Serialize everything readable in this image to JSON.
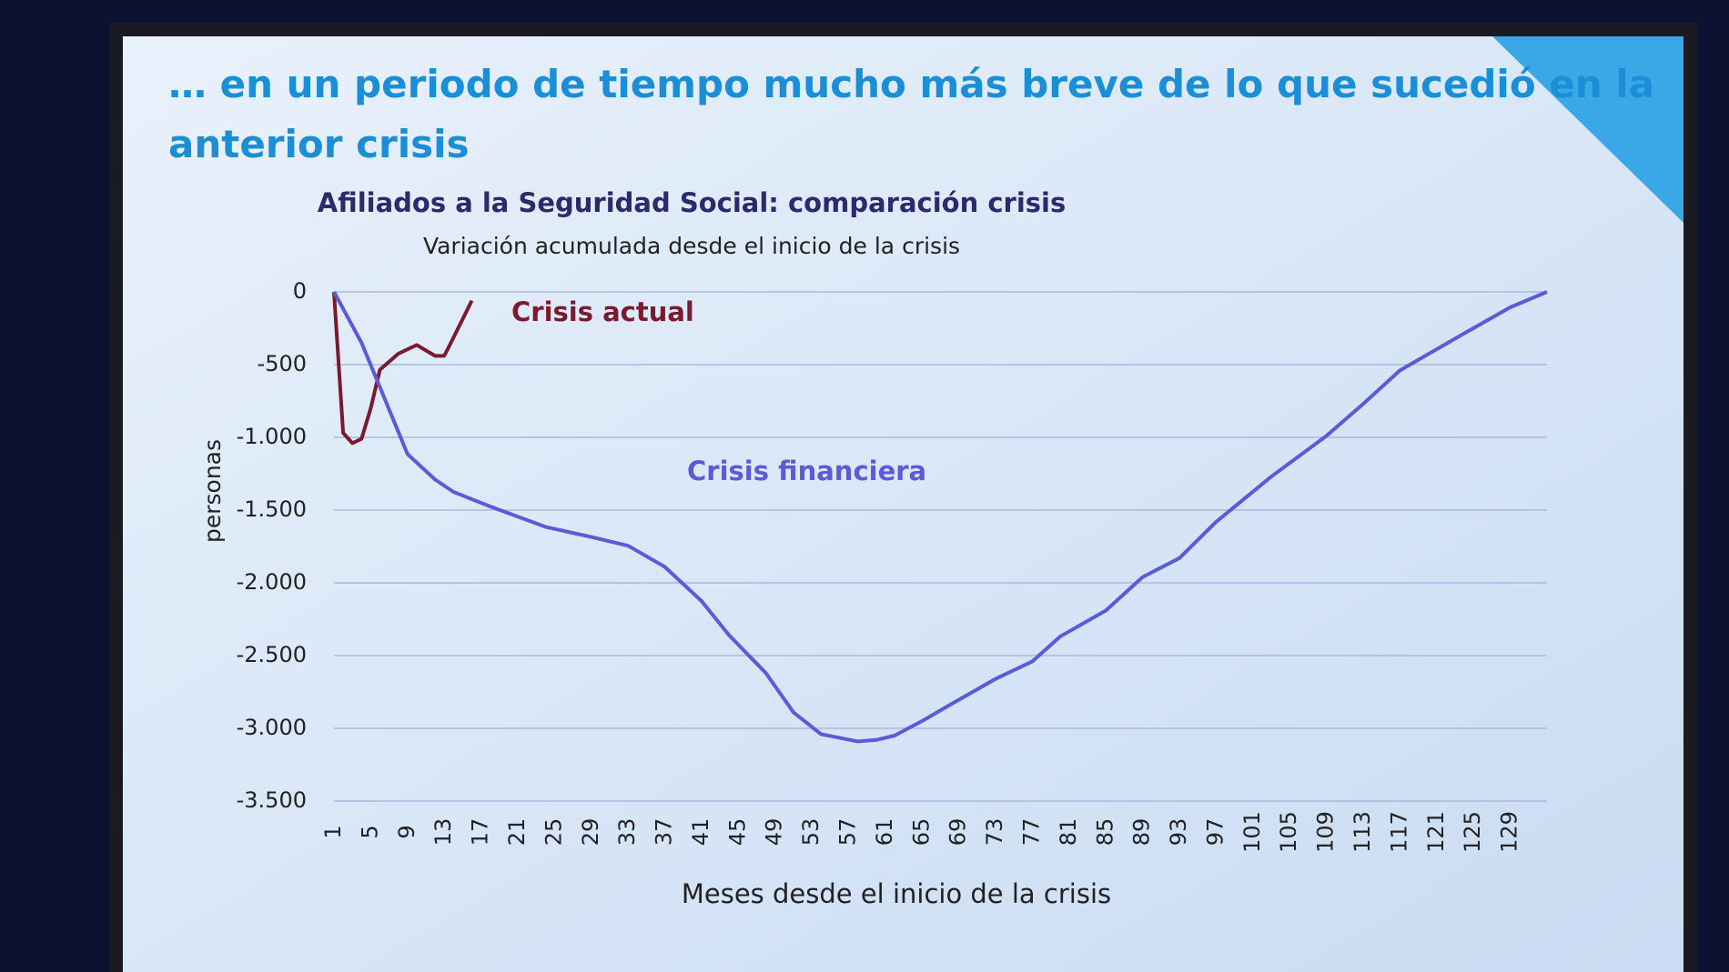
{
  "slide_title": "… en un periodo de tiempo mucho más breve de lo que sucedió en la anterior crisis",
  "chart_data": {
    "type": "line",
    "title": "Afiliados a la Seguridad Social: comparación crisis",
    "subtitle": "Variación acumulada desde el inicio de la crisis",
    "x_label": "Meses desde el inicio de la crisis",
    "y_label": "personas",
    "xlim": [
      1,
      133
    ],
    "xticks": [
      1,
      5,
      9,
      13,
      17,
      21,
      25,
      29,
      33,
      37,
      41,
      45,
      49,
      53,
      57,
      61,
      65,
      69,
      73,
      77,
      81,
      85,
      89,
      93,
      97,
      101,
      105,
      109,
      113,
      117,
      121,
      125,
      129
    ],
    "ylim": [
      -3500,
      0
    ],
    "yticks": [
      {
        "value": 0,
        "label": "0"
      },
      {
        "value": -500,
        "label": "-500"
      },
      {
        "value": -1000,
        "label": "-1.000"
      },
      {
        "value": -1500,
        "label": "-1.500"
      },
      {
        "value": -2000,
        "label": "-2.000"
      },
      {
        "value": -2500,
        "label": "-2.500"
      },
      {
        "value": -3000,
        "label": "-3.000"
      },
      {
        "value": -3500,
        "label": "-3.500"
      }
    ],
    "grid": true,
    "series": [
      {
        "name": "Crisis actual",
        "color": "#7a1a2e",
        "x": [
          1,
          2,
          3,
          4,
          5,
          6,
          8,
          10,
          12,
          13,
          14,
          16
        ],
        "values": [
          0,
          -970,
          -1040,
          -1010,
          -800,
          -535,
          -425,
          -365,
          -440,
          -440,
          -315,
          -60
        ]
      },
      {
        "name": "Crisis financiera",
        "color": "#5b5bd9",
        "x": [
          1,
          4,
          6,
          9,
          12,
          14,
          18,
          24,
          29,
          33,
          37,
          41,
          44,
          48,
          51,
          54,
          58,
          60,
          62,
          65,
          68,
          73,
          77,
          80,
          85,
          89,
          93,
          97,
          103,
          109,
          113,
          117,
          124,
          129,
          133
        ],
        "values": [
          0,
          -350,
          -655,
          -1115,
          -1290,
          -1375,
          -1475,
          -1615,
          -1685,
          -1745,
          -1890,
          -2125,
          -2360,
          -2620,
          -2890,
          -3040,
          -3090,
          -3080,
          -3050,
          -2950,
          -2840,
          -2660,
          -2540,
          -2370,
          -2190,
          -1960,
          -1830,
          -1580,
          -1270,
          -990,
          -770,
          -540,
          -285,
          -106,
          0
        ]
      }
    ]
  }
}
